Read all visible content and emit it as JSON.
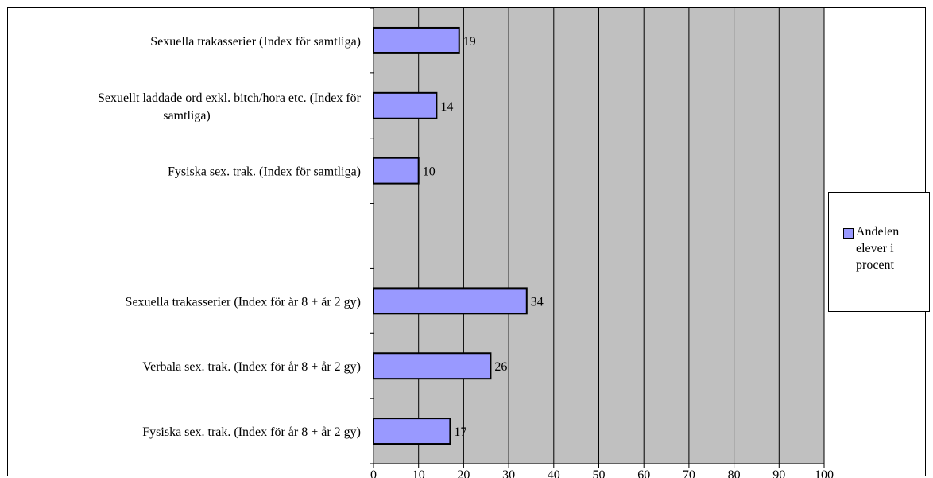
{
  "chart_data": {
    "type": "bar",
    "orientation": "horizontal",
    "categories": [
      "Sexuella trakasserier  (Index för samtliga)",
      "Sexuellt laddade ord exkl. bitch/hora etc. (Index för samtliga)",
      "Fysiska sex. trak. (Index för samtliga)",
      "",
      "Sexuella trakasserier (Index för år 8 + år 2 gy)",
      "Verbala sex. trak. (Index för år 8 + år 2 gy)",
      "Fysiska sex. trak. (Index för år 8 + år 2 gy)"
    ],
    "category_lines": [
      [
        "Sexuella trakasserier  (Index för samtliga)"
      ],
      [
        "Sexuellt laddade ord exkl. bitch/hora etc. (Index för",
        "samtliga)"
      ],
      [
        "Fysiska sex. trak. (Index för samtliga)"
      ],
      [],
      [
        "Sexuella trakasserier (Index för år 8 + år 2 gy)"
      ],
      [
        "Verbala sex. trak. (Index för år 8 + år 2 gy)"
      ],
      [
        "Fysiska sex. trak. (Index för år 8 + år 2 gy)"
      ]
    ],
    "series": [
      {
        "name": "Andelen elever i procent",
        "values": [
          19,
          14,
          10,
          null,
          34,
          26,
          17
        ]
      }
    ],
    "data_labels": [
      "19",
      "14",
      "10",
      "",
      "34",
      "26",
      "17"
    ],
    "xlim": [
      0,
      100
    ],
    "xticks": [
      0,
      10,
      20,
      30,
      40,
      50,
      60,
      70,
      80,
      90,
      100
    ],
    "title": "",
    "xlabel": "",
    "ylabel": "",
    "grid": "vertical",
    "legend_position": "right",
    "colors": {
      "bar": "#9999ff",
      "plot_bg": "#c0c0c0",
      "grid": "#000000"
    }
  },
  "legend": {
    "lines": [
      "Andelen",
      "elever i",
      "procent"
    ]
  }
}
